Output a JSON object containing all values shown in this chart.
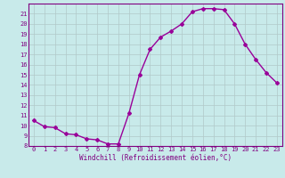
{
  "hours": [
    0,
    1,
    2,
    3,
    4,
    5,
    6,
    7,
    8,
    9,
    10,
    11,
    12,
    13,
    14,
    15,
    16,
    17,
    18,
    19,
    20,
    21,
    22,
    23
  ],
  "values": [
    10.5,
    9.9,
    9.8,
    9.2,
    9.1,
    8.7,
    8.6,
    8.2,
    8.2,
    11.2,
    15.0,
    17.5,
    18.7,
    19.3,
    20.0,
    21.2,
    21.5,
    21.5,
    21.4,
    20.0,
    18.0,
    16.5,
    15.2,
    14.2
  ],
  "line_color": "#990099",
  "marker": "D",
  "marker_size": 2,
  "bg_color": "#c8eaea",
  "grid_color": "#b0c8c8",
  "xlabel": "Windchill (Refroidissement éolien,°C)",
  "ylim": [
    8,
    22
  ],
  "xlim_left": -0.5,
  "xlim_right": 23.5,
  "yticks": [
    8,
    9,
    10,
    11,
    12,
    13,
    14,
    15,
    16,
    17,
    18,
    19,
    20,
    21
  ],
  "xticks": [
    0,
    1,
    2,
    3,
    4,
    5,
    6,
    7,
    8,
    9,
    10,
    11,
    12,
    13,
    14,
    15,
    16,
    17,
    18,
    19,
    20,
    21,
    22,
    23
  ],
  "tick_color": "#800080",
  "label_color": "#800080",
  "spine_color": "#800080",
  "tick_fontsize": 5.0,
  "xlabel_fontsize": 5.5,
  "linewidth": 1.0
}
